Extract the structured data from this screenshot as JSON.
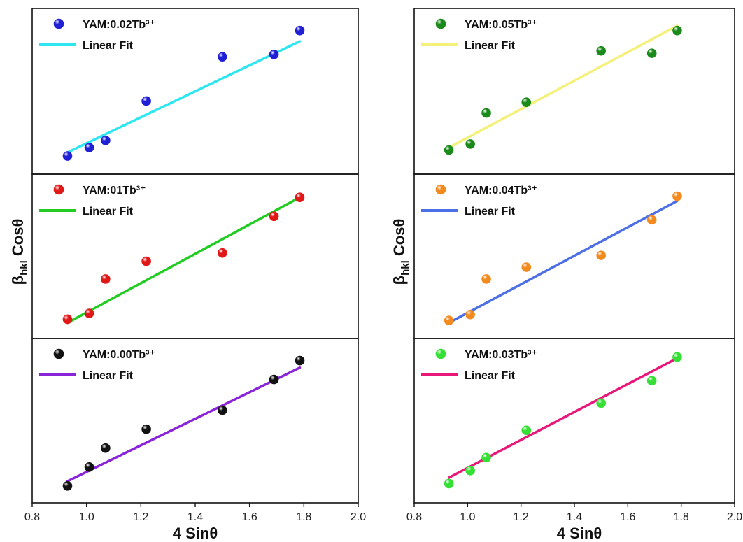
{
  "figure": {
    "left_column": {
      "ylabel_main": "β",
      "ylabel_sub": "hkl",
      "ylabel_tail": " Cosθ",
      "xlabel": "4 Sinθ"
    },
    "right_column": {
      "ylabel_main": "β",
      "ylabel_sub": "hkl",
      "ylabel_tail": " Cosθ",
      "xlabel": "4 Sinθ"
    }
  },
  "chart_data": [
    {
      "type": "scatter",
      "column": "left",
      "row": 0,
      "series": [
        {
          "name": "YAM:0.02Tb³⁺",
          "kind": "scatter",
          "color": "#1f1fd6",
          "x": [
            0.93,
            1.01,
            1.07,
            1.22,
            1.5,
            1.69,
            1.785
          ],
          "y": [
            0.07,
            0.14,
            0.2,
            0.53,
            0.9,
            0.92,
            1.12
          ]
        },
        {
          "name": "Linear Fit",
          "kind": "line",
          "color": "#2ee6f0",
          "x": [
            0.93,
            1.785
          ],
          "y": [
            0.1,
            1.03
          ]
        }
      ],
      "xlim": [
        0.8,
        2.0
      ],
      "ylim": [
        0.0,
        1.2
      ],
      "xticks": [
        0.8,
        1.0,
        1.2,
        1.4,
        1.6,
        1.8,
        2.0
      ],
      "grid": false,
      "legend": "top-left"
    },
    {
      "type": "scatter",
      "column": "left",
      "row": 1,
      "series": [
        {
          "name": "YAM:01Tb³⁺",
          "kind": "scatter",
          "color": "#e01818",
          "x": [
            0.93,
            1.01,
            1.07,
            1.22,
            1.5,
            1.69,
            1.785
          ],
          "y": [
            0.08,
            0.13,
            0.42,
            0.57,
            0.64,
            0.95,
            1.11
          ]
        },
        {
          "name": "Linear Fit",
          "kind": "line",
          "color": "#22cc22",
          "x": [
            0.93,
            1.785
          ],
          "y": [
            0.05,
            1.11
          ]
        }
      ],
      "xlim": [
        0.8,
        2.0
      ],
      "ylim": [
        0.0,
        1.2
      ],
      "xticks": [
        0.8,
        1.0,
        1.2,
        1.4,
        1.6,
        1.8,
        2.0
      ],
      "grid": false,
      "legend": "top-left"
    },
    {
      "type": "scatter",
      "column": "left",
      "row": 2,
      "series": [
        {
          "name": "YAM:0.00Tb³⁺",
          "kind": "scatter",
          "color": "#111111",
          "x": [
            0.93,
            1.01,
            1.07,
            1.22,
            1.5,
            1.69,
            1.785
          ],
          "y": [
            0.06,
            0.22,
            0.38,
            0.54,
            0.7,
            0.96,
            1.12
          ]
        },
        {
          "name": "Linear Fit",
          "kind": "line",
          "color": "#8a24d9",
          "x": [
            0.93,
            1.785
          ],
          "y": [
            0.1,
            1.06
          ]
        }
      ],
      "xlim": [
        0.8,
        2.0
      ],
      "ylim": [
        0.0,
        1.2
      ],
      "xticks": [
        0.8,
        1.0,
        1.2,
        1.4,
        1.6,
        1.8,
        2.0
      ],
      "xticklabels": [
        "0.8",
        "1.0",
        "1.2",
        "1.4",
        "1.6",
        "1.8",
        "2.0"
      ],
      "grid": false,
      "legend": "top-left"
    },
    {
      "type": "scatter",
      "column": "right",
      "row": 0,
      "series": [
        {
          "name": "YAM:0.05Tb³⁺",
          "kind": "scatter",
          "color": "#1a8a1a",
          "x": [
            0.93,
            1.01,
            1.07,
            1.22,
            1.5,
            1.69,
            1.785
          ],
          "y": [
            0.12,
            0.17,
            0.43,
            0.52,
            0.95,
            0.93,
            1.12
          ]
        },
        {
          "name": "Linear Fit",
          "kind": "line",
          "color": "#f5f07a",
          "x": [
            0.93,
            1.785
          ],
          "y": [
            0.14,
            1.16
          ]
        }
      ],
      "xlim": [
        0.8,
        2.0
      ],
      "ylim": [
        0.0,
        1.2
      ],
      "xticks": [
        0.8,
        1.0,
        1.2,
        1.4,
        1.6,
        1.8,
        2.0
      ],
      "grid": false,
      "legend": "top-left"
    },
    {
      "type": "scatter",
      "column": "right",
      "row": 1,
      "series": [
        {
          "name": "YAM:0.04Tb³⁺",
          "kind": "scatter",
          "color": "#f28a1e",
          "x": [
            0.93,
            1.01,
            1.07,
            1.22,
            1.5,
            1.69,
            1.785
          ],
          "y": [
            0.07,
            0.12,
            0.42,
            0.52,
            0.62,
            0.92,
            1.12
          ]
        },
        {
          "name": "Linear Fit",
          "kind": "line",
          "color": "#4d6fe6",
          "x": [
            0.93,
            1.785
          ],
          "y": [
            0.05,
            1.08
          ]
        }
      ],
      "xlim": [
        0.8,
        2.0
      ],
      "ylim": [
        0.0,
        1.2
      ],
      "xticks": [
        0.8,
        1.0,
        1.2,
        1.4,
        1.6,
        1.8,
        2.0
      ],
      "grid": false,
      "legend": "top-left"
    },
    {
      "type": "scatter",
      "column": "right",
      "row": 2,
      "series": [
        {
          "name": "YAM:0.03Tb³⁺",
          "kind": "scatter",
          "color": "#33e033",
          "x": [
            0.93,
            1.01,
            1.07,
            1.22,
            1.5,
            1.69,
            1.785
          ],
          "y": [
            0.08,
            0.19,
            0.3,
            0.53,
            0.76,
            0.95,
            1.15
          ]
        },
        {
          "name": "Linear Fit",
          "kind": "line",
          "color": "#e8187a",
          "x": [
            0.93,
            1.785
          ],
          "y": [
            0.13,
            1.14
          ]
        }
      ],
      "xlim": [
        0.8,
        2.0
      ],
      "ylim": [
        0.0,
        1.2
      ],
      "xticks": [
        0.8,
        1.0,
        1.2,
        1.4,
        1.6,
        1.8,
        2.0
      ],
      "xticklabels": [
        "0.8",
        "1.0",
        "1.2",
        "1.4",
        "1.6",
        "1.8",
        "2.0"
      ],
      "grid": false,
      "legend": "top-left"
    }
  ]
}
